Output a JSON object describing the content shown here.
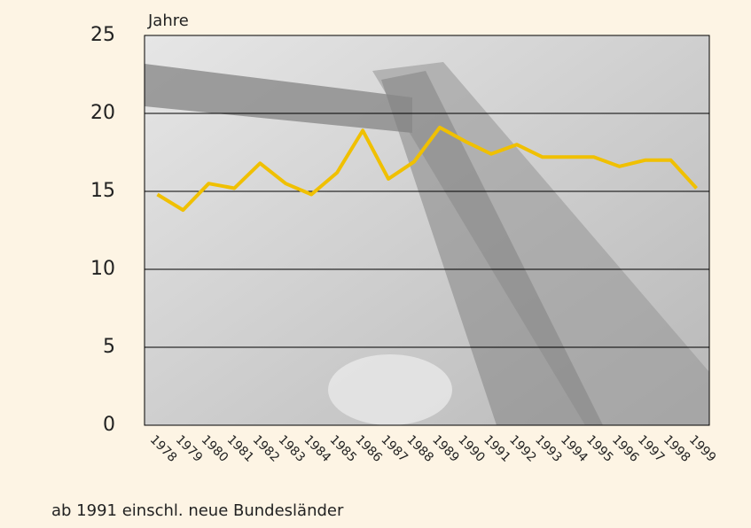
{
  "chart_data": {
    "type": "line",
    "y_axis_label": "Jahre",
    "note": "ab 1991 einschl. neue Bundesländer",
    "categories": [
      "1978",
      "1979",
      "1980",
      "1981",
      "1982",
      "1983",
      "1984",
      "1985",
      "1986",
      "1987",
      "1988",
      "1989",
      "1990",
      "1991",
      "1992",
      "1993",
      "1994",
      "1995",
      "1996",
      "1997",
      "1998",
      "1999"
    ],
    "values": [
      14.8,
      13.8,
      15.5,
      15.2,
      16.8,
      15.5,
      14.8,
      16.2,
      18.9,
      15.8,
      16.9,
      19.1,
      18.2,
      17.4,
      18.0,
      17.2,
      17.2,
      17.2,
      16.6,
      17.0,
      17.0,
      15.2
    ],
    "color": "#f0c000",
    "ylim": [
      0,
      25
    ],
    "yticks": [
      0,
      5,
      10,
      15,
      20,
      25
    ],
    "grid": true
  }
}
